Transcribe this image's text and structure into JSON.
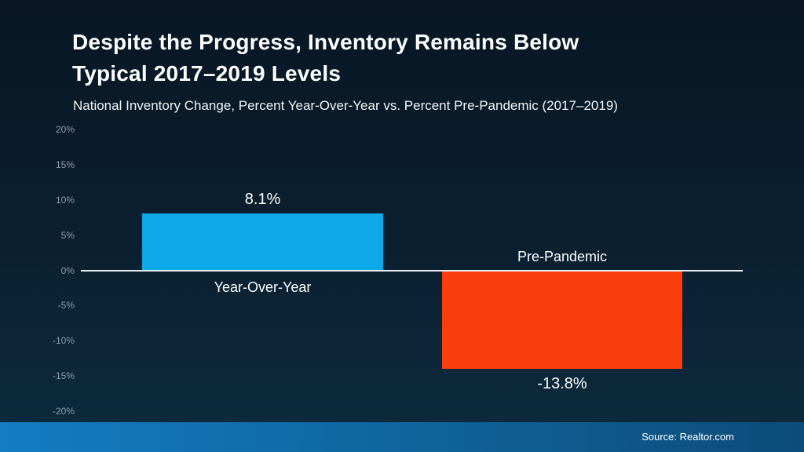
{
  "header": {
    "title_line1": "Despite the Progress, Inventory Remains Below",
    "title_line2": "Typical 2017–2019 Levels",
    "subtitle": "National Inventory Change, Percent Year-Over-Year vs. Percent Pre-Pandemic (2017–2019)"
  },
  "chart_data": {
    "type": "bar",
    "title": "Despite the Progress, Inventory Remains Below Typical 2017–2019 Levels",
    "subtitle": "National Inventory Change, Percent Year-Over-Year vs. Percent Pre-Pandemic (2017–2019)",
    "categories": [
      "Year-Over-Year",
      "Pre-Pandemic"
    ],
    "values": [
      8.1,
      -13.8
    ],
    "data_labels": [
      "8.1%",
      "-13.8%"
    ],
    "bar_colors": [
      "#0ea7e7",
      "#fa3d0c"
    ],
    "ylim": [
      -20,
      20
    ],
    "y_tick_step": 5,
    "y_ticks": [
      "20%",
      "15%",
      "10%",
      "5%",
      "0%",
      "-5%",
      "-10%",
      "-15%",
      "-20%"
    ],
    "grid": false,
    "legend": "none",
    "baseline": 0,
    "baseline_color": "#e9edf0",
    "tick_label_color": "#8c9ca9"
  },
  "footer": {
    "source_label": "Source: Realtor.com",
    "gradient_left": "#137dc2",
    "gradient_right": "#0c4c79"
  },
  "colors": {
    "background_top": "#081623",
    "background_bottom": "#0d2b3f",
    "title_text": "#ffffff"
  }
}
